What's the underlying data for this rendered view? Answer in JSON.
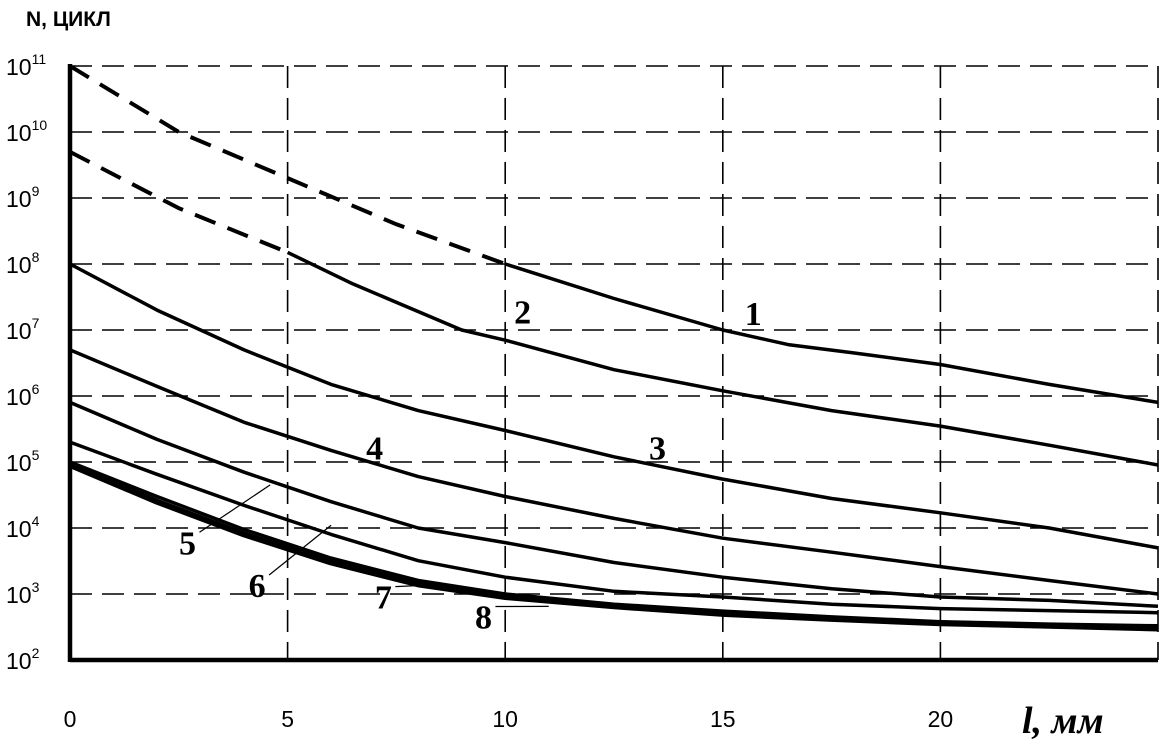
{
  "chart_data": {
    "type": "line",
    "ylabel": "N, ЦИКЛ",
    "xlabel": "l, мм",
    "y_scale": "log",
    "ylim": [
      100,
      100000000000
    ],
    "xlim": [
      0,
      25
    ],
    "grid": true,
    "x_ticks": [
      "0",
      "5",
      "10",
      "15",
      "20"
    ],
    "y_ticks": [
      {
        "base": "10",
        "exp": "2"
      },
      {
        "base": "10",
        "exp": "3"
      },
      {
        "base": "10",
        "exp": "4"
      },
      {
        "base": "10",
        "exp": "5"
      },
      {
        "base": "10",
        "exp": "6"
      },
      {
        "base": "10",
        "exp": "7"
      },
      {
        "base": "10",
        "exp": "8"
      },
      {
        "base": "10",
        "exp": "9"
      },
      {
        "base": "10",
        "exp": "10"
      },
      {
        "base": "10",
        "exp": "11"
      }
    ],
    "series": [
      {
        "name": "1",
        "dashed_segment": {
          "x": [
            0,
            2.5,
            5,
            7.5,
            10
          ],
          "y": [
            100000000000,
            10000000000,
            2000000000,
            400000000,
            100000000
          ]
        },
        "solid_segment": {
          "x": [
            10,
            12.5,
            15,
            16.5,
            18,
            20,
            22.5,
            25
          ],
          "y": [
            100000000,
            30000000,
            10000000,
            6000000,
            4500000,
            3000000,
            1500000,
            800000
          ]
        }
      },
      {
        "name": "2",
        "dashed_segment": {
          "x": [
            0,
            2.5,
            5
          ],
          "y": [
            5000000000,
            700000000,
            150000000
          ]
        },
        "solid_segment": {
          "x": [
            5,
            6.5,
            9,
            10,
            12.5,
            15,
            17.5,
            20,
            22.5,
            25
          ],
          "y": [
            150000000,
            50000000,
            10000000,
            7000000,
            2500000,
            1200000,
            600000,
            350000,
            180000,
            90000
          ]
        }
      },
      {
        "name": "3",
        "x": [
          0,
          2,
          4,
          6,
          8,
          10,
          12.5,
          15,
          17.5,
          20,
          22.5,
          25
        ],
        "y": [
          100000000,
          20000000,
          5000000,
          1500000,
          600000,
          300000,
          120000,
          55000,
          28000,
          17000,
          10000,
          5000
        ]
      },
      {
        "name": "4",
        "x": [
          0,
          2,
          4,
          6,
          8,
          10,
          12.5,
          15,
          17.5,
          20,
          22.5,
          25
        ],
        "y": [
          5000000,
          1400000,
          400000,
          150000,
          60000,
          30000,
          14000,
          7000,
          4300,
          2600,
          1600,
          1000
        ]
      },
      {
        "name": "5",
        "x": [
          0,
          2,
          4,
          6,
          8,
          10,
          12.5,
          15,
          17.5,
          20,
          22.5,
          25
        ],
        "y": [
          800000,
          220000,
          70000,
          25000,
          10000,
          6000,
          3000,
          1800,
          1200,
          900,
          800,
          650
        ]
      },
      {
        "name": "6",
        "x": [
          0,
          2,
          4,
          6,
          8,
          10,
          12.5,
          15,
          17.5,
          20,
          22.5,
          25
        ],
        "y": [
          200000,
          65000,
          22000,
          8000,
          3200,
          1800,
          1100,
          900,
          700,
          600,
          560,
          520
        ]
      },
      {
        "name": "7",
        "x": [
          0,
          2,
          4,
          6,
          8,
          10,
          12.5,
          15,
          17.5,
          20,
          22.5,
          25
        ],
        "y": [
          100000,
          30000,
          9500,
          3500,
          1600,
          1000,
          700,
          550,
          450,
          380,
          350,
          330
        ]
      },
      {
        "name": "8",
        "x": [
          0,
          2,
          4,
          6,
          8,
          10,
          12.5,
          15,
          17.5,
          20,
          22.5,
          25
        ],
        "y": [
          90000,
          25000,
          8000,
          3000,
          1400,
          900,
          650,
          500,
          420,
          360,
          330,
          300
        ]
      }
    ],
    "curve_labels": [
      {
        "text": "1",
        "x": 15.7,
        "y": 12000000
      },
      {
        "text": "2",
        "x": 10.4,
        "y": 12500000
      },
      {
        "text": "3",
        "x": 13.5,
        "y": 110000
      },
      {
        "text": "4",
        "x": 7.0,
        "y": 110000
      },
      {
        "text": "5",
        "x": 2.7,
        "y": 4000,
        "pointer_to": {
          "x": 4.6,
          "y": 45000
        }
      },
      {
        "text": "6",
        "x": 4.3,
        "y": 900,
        "pointer_to": {
          "x": 6.0,
          "y": 11000
        }
      },
      {
        "text": "7",
        "x": 7.2,
        "y": 600,
        "pointer_to": {
          "x": 8.6,
          "y": 1400
        }
      },
      {
        "text": "8",
        "x": 9.5,
        "y": 300,
        "pointer_to": {
          "x": 11.0,
          "y": 650
        }
      }
    ]
  }
}
